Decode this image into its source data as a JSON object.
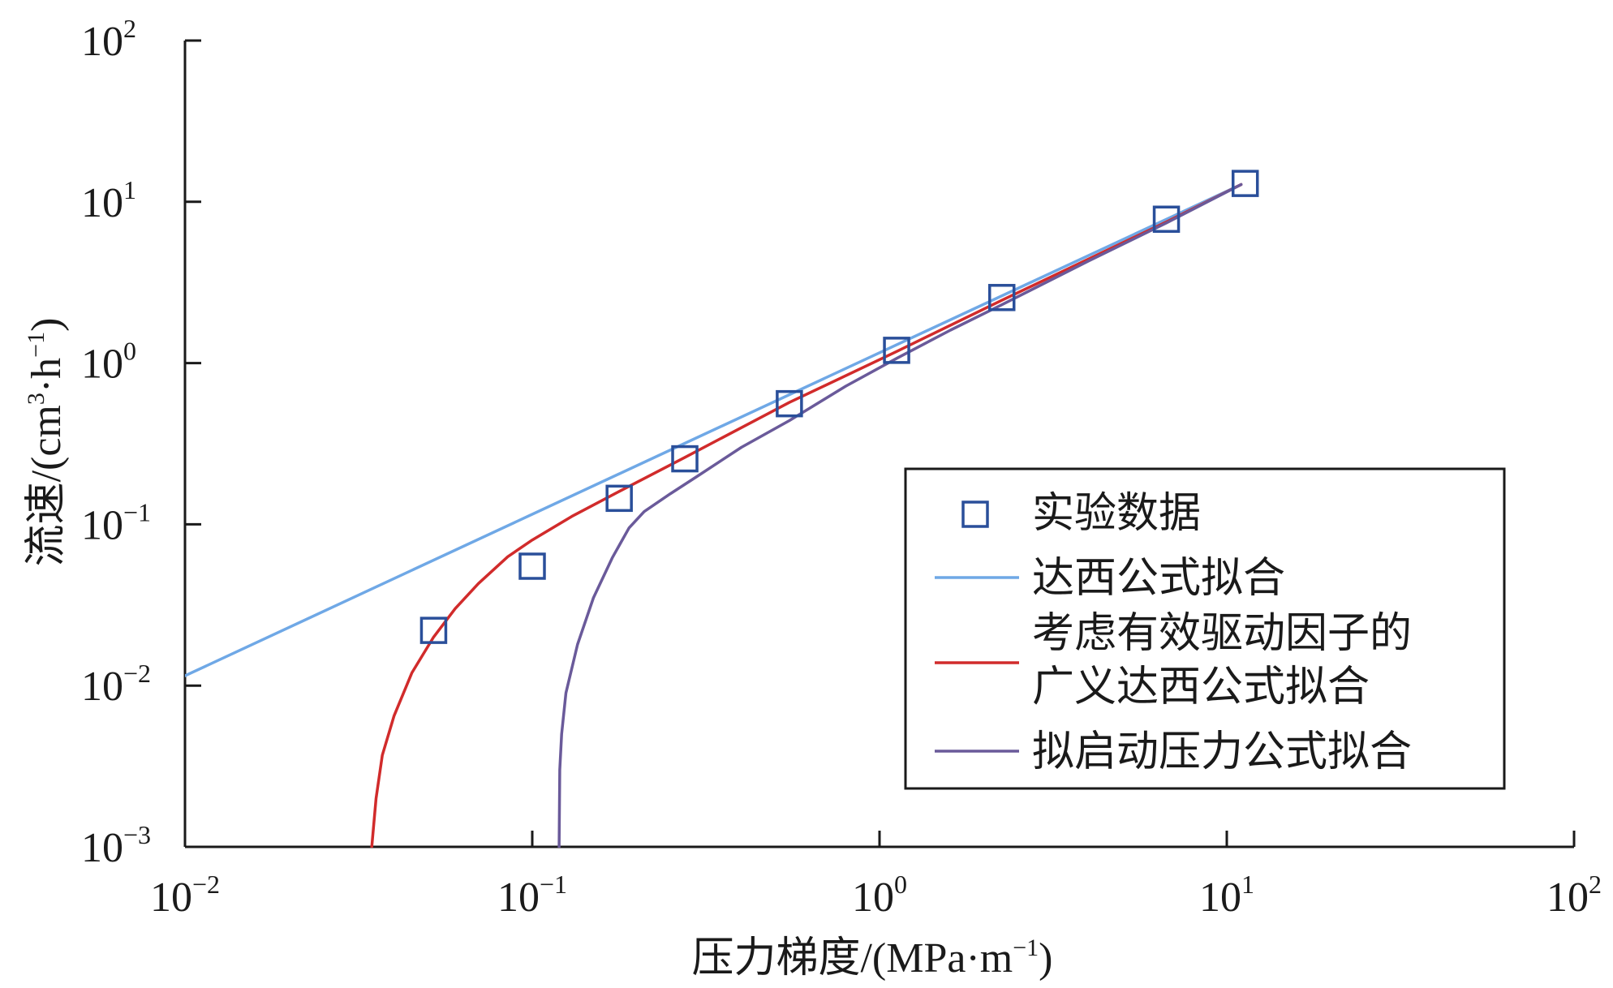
{
  "chart_data": {
    "type": "scatter",
    "xlabel": "压力梯度/(MPa·m",
    "xlabel_sup": "−1",
    "xlabel_end": ")",
    "ylabel": "流速/(cm",
    "ylabel_sup1": "3",
    "ylabel_mid": "·h",
    "ylabel_sup2": "−1",
    "ylabel_end": ")",
    "x_scale": "log",
    "y_scale": "log",
    "xlim": [
      0.01,
      100
    ],
    "ylim": [
      0.001,
      100
    ],
    "x_ticks": [
      {
        "base": "10",
        "exp": "−2"
      },
      {
        "base": "10",
        "exp": "−1"
      },
      {
        "base": "10",
        "exp": "0"
      },
      {
        "base": "10",
        "exp": "1"
      },
      {
        "base": "10",
        "exp": "2"
      }
    ],
    "y_ticks": [
      {
        "base": "10",
        "exp": "−3"
      },
      {
        "base": "10",
        "exp": "−2"
      },
      {
        "base": "10",
        "exp": "−1"
      },
      {
        "base": "10",
        "exp": "0"
      },
      {
        "base": "10",
        "exp": "1"
      },
      {
        "base": "10",
        "exp": "2"
      }
    ],
    "grid": false,
    "legend_position": "lower-right",
    "legend": [
      {
        "label": "实验数据",
        "kind": "marker"
      },
      {
        "label": "达西公式拟合",
        "kind": "line"
      },
      {
        "label": "考虑有效驱动因子的",
        "label2": "广义达西公式拟合",
        "kind": "line"
      },
      {
        "label": "拟启动压力公式拟合",
        "kind": "line"
      }
    ],
    "series": [
      {
        "name": "实验数据",
        "kind": "scatter",
        "color": "#2a4f9a",
        "x": [
          0.052,
          0.1,
          0.178,
          0.275,
          0.55,
          1.12,
          2.25,
          6.7,
          11.3
        ],
        "y": [
          0.022,
          0.055,
          0.145,
          0.255,
          0.56,
          1.2,
          2.55,
          7.8,
          13.0
        ]
      },
      {
        "name": "达西公式拟合",
        "kind": "line",
        "color": "#6fa8e6",
        "x": [
          0.01,
          11.0
        ],
        "y": [
          0.0115,
          12.8
        ]
      },
      {
        "name": "考虑有效驱动因子的广义达西公式拟合",
        "kind": "line",
        "color": "#d12b2b",
        "x": [
          0.0345,
          0.0355,
          0.037,
          0.04,
          0.045,
          0.052,
          0.06,
          0.07,
          0.085,
          0.1,
          0.13,
          0.178,
          0.275,
          0.55,
          1.12,
          2.25,
          6.7,
          11.0
        ],
        "y": [
          0.001,
          0.002,
          0.0037,
          0.0065,
          0.012,
          0.02,
          0.03,
          0.043,
          0.063,
          0.08,
          0.112,
          0.16,
          0.26,
          0.57,
          1.18,
          2.45,
          7.5,
          12.8
        ]
      },
      {
        "name": "拟启动压力公式拟合",
        "kind": "line",
        "color": "#6a5a9a",
        "x": [
          0.1195,
          0.12,
          0.1215,
          0.125,
          0.135,
          0.15,
          0.17,
          0.19,
          0.21,
          0.25,
          0.3,
          0.4,
          0.55,
          0.8,
          1.12,
          1.6,
          2.25,
          4.0,
          6.7,
          11.0
        ],
        "y": [
          0.001,
          0.003,
          0.005,
          0.009,
          0.018,
          0.035,
          0.062,
          0.095,
          0.12,
          0.155,
          0.2,
          0.3,
          0.44,
          0.72,
          1.07,
          1.6,
          2.3,
          4.3,
          7.4,
          12.8
        ]
      }
    ]
  }
}
